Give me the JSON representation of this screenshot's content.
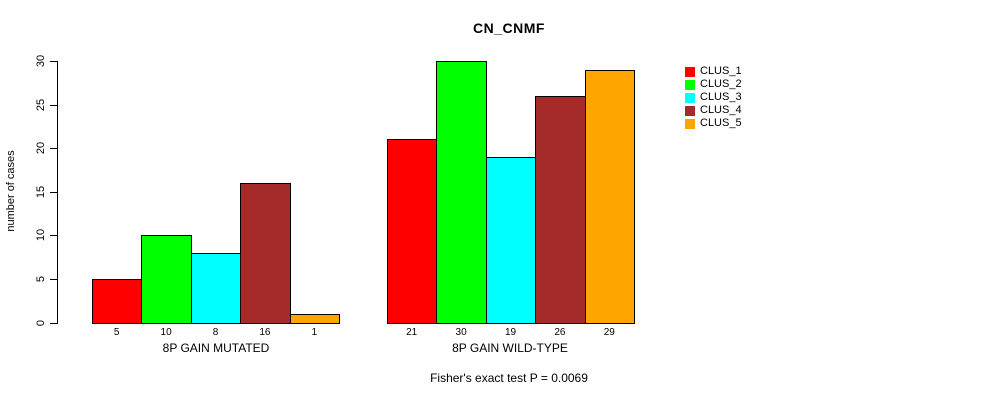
{
  "chart_data": {
    "type": "bar",
    "title": "CN_CNMF",
    "ylabel": "number of cases",
    "xlabel": "",
    "ylim": [
      0,
      30
    ],
    "yticks": [
      0,
      5,
      10,
      15,
      20,
      25,
      30
    ],
    "grid": false,
    "legend_position": "right",
    "categories": [
      "8P GAIN MUTATED",
      "8P GAIN WILD-TYPE"
    ],
    "series": [
      {
        "name": "CLUS_1",
        "color": "#ff0000",
        "values": [
          5,
          21
        ]
      },
      {
        "name": "CLUS_2",
        "color": "#00ff00",
        "values": [
          10,
          30
        ]
      },
      {
        "name": "CLUS_3",
        "color": "#00ffff",
        "values": [
          8,
          19
        ]
      },
      {
        "name": "CLUS_4",
        "color": "#a52a2a",
        "values": [
          16,
          26
        ]
      },
      {
        "name": "CLUS_5",
        "color": "#ffa500",
        "values": [
          1,
          29
        ]
      }
    ],
    "bar_value_labels_shown": true,
    "annotation": "Fisher's exact test P = 0.0069"
  }
}
